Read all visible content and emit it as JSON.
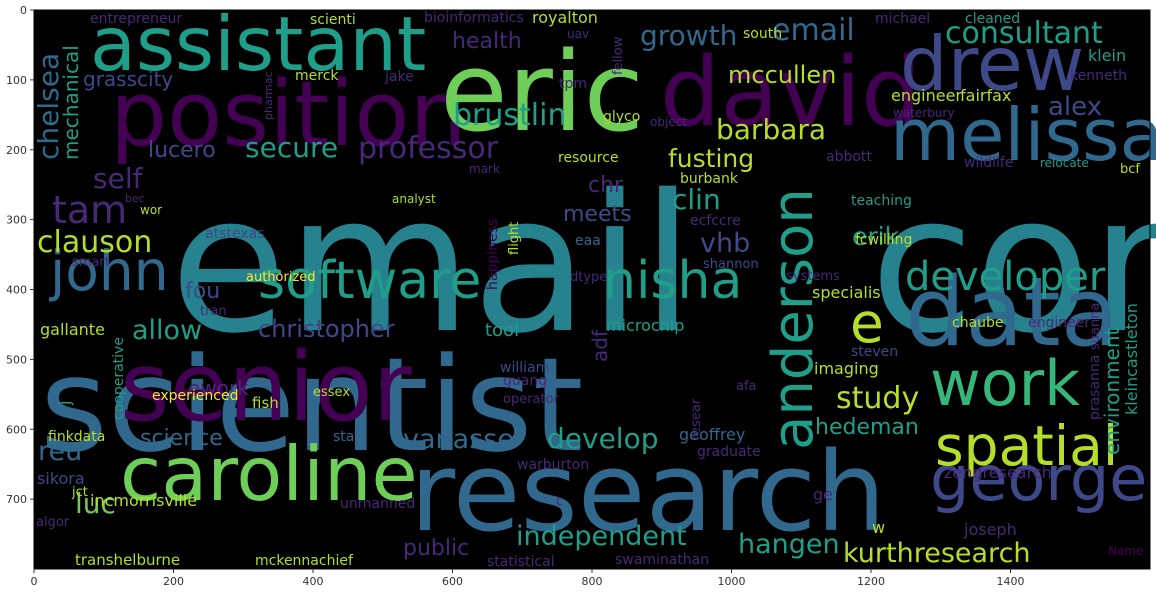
{
  "figure": {
    "type": "wordcloud",
    "background": "#000000",
    "x_ticks": [
      "0",
      "200",
      "400",
      "600",
      "800",
      "1000",
      "1200",
      "1400"
    ],
    "y_ticks": [
      "0",
      "100",
      "200",
      "300",
      "400",
      "500",
      "600",
      "700"
    ],
    "x_tick_values": [
      0,
      200,
      400,
      600,
      800,
      1000,
      1200,
      1400
    ],
    "y_tick_values": [
      0,
      100,
      200,
      300,
      400,
      500,
      600,
      700
    ],
    "xlim": [
      0,
      1600
    ],
    "ylim": [
      0,
      800
    ],
    "y_inverted": true
  },
  "palette": {
    "purple": "#440154",
    "indigo": "#482878",
    "blue": "#3e4989",
    "steel": "#31688e",
    "teal": "#26828e",
    "sea": "#1f9e89",
    "green": "#35b779",
    "lime": "#6ece58",
    "yellow": "#b5de2b",
    "gold": "#fde725"
  },
  "words": [
    {
      "text": "email",
      "x": 170,
      "y": 330,
      "s": 190,
      "c": "teal"
    },
    {
      "text": "com",
      "x": 870,
      "y": 330,
      "s": 190,
      "c": "teal"
    },
    {
      "text": "scientist",
      "x": 40,
      "y": 450,
      "s": 130,
      "c": "steel"
    },
    {
      "text": "research",
      "x": 410,
      "y": 530,
      "s": 110,
      "c": "steel"
    },
    {
      "text": "senior",
      "x": 120,
      "y": 420,
      "s": 95,
      "c": "purple"
    },
    {
      "text": "position",
      "x": 110,
      "y": 145,
      "s": 90,
      "c": "purple"
    },
    {
      "text": "david",
      "x": 660,
      "y": 125,
      "s": 95,
      "c": "purple"
    },
    {
      "text": "eric",
      "x": 440,
      "y": 130,
      "s": 110,
      "c": "lime"
    },
    {
      "text": "assistant",
      "x": 90,
      "y": 70,
      "s": 75,
      "c": "sea"
    },
    {
      "text": "caroline",
      "x": 120,
      "y": 500,
      "s": 75,
      "c": "lime"
    },
    {
      "text": "drew",
      "x": 900,
      "y": 90,
      "s": 75,
      "c": "blue"
    },
    {
      "text": "melissa",
      "x": 890,
      "y": 160,
      "s": 72,
      "c": "steel"
    },
    {
      "text": "data",
      "x": 905,
      "y": 345,
      "s": 95,
      "c": "steel"
    },
    {
      "text": "work",
      "x": 930,
      "y": 405,
      "s": 62,
      "c": "green"
    },
    {
      "text": "george",
      "x": 930,
      "y": 500,
      "s": 62,
      "c": "blue"
    },
    {
      "text": "spatial",
      "x": 935,
      "y": 465,
      "s": 55,
      "c": "yellow"
    },
    {
      "text": "software",
      "x": 258,
      "y": 298,
      "s": 52,
      "c": "sea"
    },
    {
      "text": "nisha",
      "x": 603,
      "y": 298,
      "s": 52,
      "c": "sea"
    },
    {
      "text": "john",
      "x": 50,
      "y": 290,
      "s": 55,
      "c": "steel"
    },
    {
      "text": "anderson",
      "x": 812,
      "y": 450,
      "s": 56,
      "c": "sea",
      "r": -90
    },
    {
      "text": "e",
      "x": 850,
      "y": 342,
      "s": 55,
      "c": "yellow"
    },
    {
      "text": "developer",
      "x": 905,
      "y": 290,
      "s": 40,
      "c": "sea"
    },
    {
      "text": "consultant",
      "x": 945,
      "y": 43,
      "s": 30,
      "c": "sea"
    },
    {
      "text": "growth",
      "x": 640,
      "y": 45,
      "s": 28,
      "c": "steel"
    },
    {
      "text": "email",
      "x": 772,
      "y": 40,
      "s": 30,
      "c": "steel"
    },
    {
      "text": "mccullen",
      "x": 728,
      "y": 83,
      "s": 24,
      "c": "yellow"
    },
    {
      "text": "health",
      "x": 452,
      "y": 48,
      "s": 22,
      "c": "indigo"
    },
    {
      "text": "brustlin",
      "x": 453,
      "y": 125,
      "s": 30,
      "c": "sea"
    },
    {
      "text": "barbara",
      "x": 716,
      "y": 139,
      "s": 28,
      "c": "yellow"
    },
    {
      "text": "professor",
      "x": 358,
      "y": 158,
      "s": 30,
      "c": "indigo"
    },
    {
      "text": "secure",
      "x": 245,
      "y": 157,
      "s": 28,
      "c": "sea"
    },
    {
      "text": "lucero",
      "x": 148,
      "y": 157,
      "s": 22,
      "c": "blue"
    },
    {
      "text": "fusting",
      "x": 668,
      "y": 167,
      "s": 25,
      "c": "yellow"
    },
    {
      "text": "self",
      "x": 93,
      "y": 188,
      "s": 28,
      "c": "indigo"
    },
    {
      "text": "chr",
      "x": 588,
      "y": 192,
      "s": 22,
      "c": "indigo"
    },
    {
      "text": "clin",
      "x": 672,
      "y": 209,
      "s": 28,
      "c": "sea"
    },
    {
      "text": "tam",
      "x": 52,
      "y": 223,
      "s": 38,
      "c": "indigo"
    },
    {
      "text": "meets",
      "x": 563,
      "y": 221,
      "s": 22,
      "c": "blue"
    },
    {
      "text": "clauson",
      "x": 37,
      "y": 252,
      "s": 30,
      "c": "yellow"
    },
    {
      "text": "vhb",
      "x": 700,
      "y": 252,
      "s": 27,
      "c": "blue"
    },
    {
      "text": "erik",
      "x": 852,
      "y": 245,
      "s": 25,
      "c": "sea"
    },
    {
      "text": "fou",
      "x": 185,
      "y": 298,
      "s": 22,
      "c": "blue"
    },
    {
      "text": "allow",
      "x": 132,
      "y": 339,
      "s": 27,
      "c": "sea"
    },
    {
      "text": "christopher",
      "x": 258,
      "y": 337,
      "s": 24,
      "c": "blue"
    },
    {
      "text": "study",
      "x": 836,
      "y": 408,
      "s": 30,
      "c": "yellow"
    },
    {
      "text": "hedeman",
      "x": 815,
      "y": 434,
      "s": 22,
      "c": "sea"
    },
    {
      "text": "science",
      "x": 140,
      "y": 445,
      "s": 22,
      "c": "steel"
    },
    {
      "text": "vanasse",
      "x": 403,
      "y": 448,
      "s": 27,
      "c": "steel"
    },
    {
      "text": "develop",
      "x": 547,
      "y": 448,
      "s": 28,
      "c": "sea"
    },
    {
      "text": "reu",
      "x": 38,
      "y": 460,
      "s": 27,
      "c": "steel"
    },
    {
      "text": "luc",
      "x": 75,
      "y": 513,
      "s": 28,
      "c": "lime"
    },
    {
      "text": "independent",
      "x": 516,
      "y": 545,
      "s": 27,
      "c": "sea"
    },
    {
      "text": "hangen",
      "x": 738,
      "y": 553,
      "s": 27,
      "c": "sea"
    },
    {
      "text": "kurthresearch",
      "x": 843,
      "y": 562,
      "s": 27,
      "c": "yellow"
    },
    {
      "text": "public",
      "x": 403,
      "y": 555,
      "s": 22,
      "c": "indigo"
    },
    {
      "text": "ework",
      "x": 188,
      "y": 395,
      "s": 20,
      "c": "indigo"
    },
    {
      "text": "alex",
      "x": 1048,
      "y": 115,
      "s": 26,
      "c": "blue"
    },
    {
      "text": "chelsea",
      "x": 58,
      "y": 160,
      "s": 28,
      "c": "steel",
      "r": -90
    },
    {
      "text": "mechanical",
      "x": 78,
      "y": 160,
      "s": 20,
      "c": "sea",
      "r": -90
    },
    {
      "text": "grasscity",
      "x": 83,
      "y": 86,
      "s": 20,
      "c": "blue"
    },
    {
      "text": "entrepreneur",
      "x": 90,
      "y": 23,
      "s": 14,
      "c": "indigo"
    },
    {
      "text": "scienti",
      "x": 310,
      "y": 24,
      "s": 14,
      "c": "yellow"
    },
    {
      "text": "bioinformatics",
      "x": 424,
      "y": 22,
      "s": 14,
      "c": "indigo"
    },
    {
      "text": "royalton",
      "x": 532,
      "y": 23,
      "s": 16,
      "c": "yellow"
    },
    {
      "text": "uav",
      "x": 567,
      "y": 38,
      "s": 12,
      "c": "indigo"
    },
    {
      "text": "south",
      "x": 743,
      "y": 38,
      "s": 14,
      "c": "yellow"
    },
    {
      "text": "michael",
      "x": 875,
      "y": 23,
      "s": 14,
      "c": "indigo"
    },
    {
      "text": "cleaned",
      "x": 965,
      "y": 23,
      "s": 14,
      "c": "sea"
    },
    {
      "text": "klein",
      "x": 1088,
      "y": 61,
      "s": 16,
      "c": "sea"
    },
    {
      "text": "kenneth",
      "x": 1070,
      "y": 80,
      "s": 14,
      "c": "indigo"
    },
    {
      "text": "merck",
      "x": 295,
      "y": 80,
      "s": 14,
      "c": "yellow"
    },
    {
      "text": "jake",
      "x": 385,
      "y": 81,
      "s": 14,
      "c": "indigo"
    },
    {
      "text": "tpm",
      "x": 559,
      "y": 88,
      "s": 14,
      "c": "indigo"
    },
    {
      "text": "glyco",
      "x": 603,
      "y": 121,
      "s": 14,
      "c": "yellow"
    },
    {
      "text": "object",
      "x": 650,
      "y": 126,
      "s": 12,
      "c": "indigo"
    },
    {
      "text": "engineer",
      "x": 891,
      "y": 101,
      "s": 16,
      "c": "yellow"
    },
    {
      "text": "fairfax",
      "x": 960,
      "y": 101,
      "s": 16,
      "c": "yellow"
    },
    {
      "text": "waterbury",
      "x": 893,
      "y": 117,
      "s": 12,
      "c": "indigo"
    },
    {
      "text": "resource",
      "x": 558,
      "y": 162,
      "s": 14,
      "c": "yellow"
    },
    {
      "text": "abbott",
      "x": 826,
      "y": 161,
      "s": 14,
      "c": "indigo"
    },
    {
      "text": "wildlife",
      "x": 964,
      "y": 167,
      "s": 14,
      "c": "indigo"
    },
    {
      "text": "relocate",
      "x": 1040,
      "y": 167,
      "s": 12,
      "c": "sea"
    },
    {
      "text": "bcf",
      "x": 1120,
      "y": 173,
      "s": 13,
      "c": "yellow"
    },
    {
      "text": "mark",
      "x": 469,
      "y": 173,
      "s": 12,
      "c": "indigo"
    },
    {
      "text": "burbank",
      "x": 680,
      "y": 183,
      "s": 14,
      "c": "yellow"
    },
    {
      "text": "bec",
      "x": 125,
      "y": 202,
      "s": 11,
      "c": "indigo"
    },
    {
      "text": "wor",
      "x": 140,
      "y": 214,
      "s": 12,
      "c": "yellow"
    },
    {
      "text": "analyst",
      "x": 392,
      "y": 203,
      "s": 12,
      "c": "yellow"
    },
    {
      "text": "ecfccre",
      "x": 690,
      "y": 225,
      "s": 14,
      "c": "indigo"
    },
    {
      "text": "teaching",
      "x": 851,
      "y": 205,
      "s": 14,
      "c": "sea"
    },
    {
      "text": "fcwilling",
      "x": 855,
      "y": 244,
      "s": 14,
      "c": "yellow"
    },
    {
      "text": "atstexas",
      "x": 205,
      "y": 238,
      "s": 14,
      "c": "blue"
    },
    {
      "text": "eaa",
      "x": 575,
      "y": 245,
      "s": 14,
      "c": "steel"
    },
    {
      "text": "smart",
      "x": 72,
      "y": 266,
      "s": 13,
      "c": "indigo"
    },
    {
      "text": "shannon",
      "x": 703,
      "y": 268,
      "s": 13,
      "c": "blue"
    },
    {
      "text": "authorized",
      "x": 246,
      "y": 281,
      "s": 13,
      "c": "gold"
    },
    {
      "text": "dtype",
      "x": 570,
      "y": 281,
      "s": 13,
      "c": "indigo"
    },
    {
      "text": "systems",
      "x": 786,
      "y": 280,
      "s": 13,
      "c": "indigo"
    },
    {
      "text": "specialis",
      "x": 812,
      "y": 298,
      "s": 16,
      "c": "yellow"
    },
    {
      "text": "tran",
      "x": 200,
      "y": 315,
      "s": 13,
      "c": "indigo"
    },
    {
      "text": "gallante",
      "x": 40,
      "y": 335,
      "s": 16,
      "c": "yellow"
    },
    {
      "text": "tool",
      "x": 485,
      "y": 336,
      "s": 18,
      "c": "sea"
    },
    {
      "text": "microchip",
      "x": 606,
      "y": 331,
      "s": 16,
      "c": "sea"
    },
    {
      "text": "chaube",
      "x": 952,
      "y": 327,
      "s": 14,
      "c": "yellow"
    },
    {
      "text": "engineer",
      "x": 1028,
      "y": 327,
      "s": 14,
      "c": "indigo"
    },
    {
      "text": "steven",
      "x": 851,
      "y": 356,
      "s": 14,
      "c": "blue"
    },
    {
      "text": "imaging",
      "x": 814,
      "y": 374,
      "s": 16,
      "c": "yellow"
    },
    {
      "text": "william",
      "x": 500,
      "y": 372,
      "s": 14,
      "c": "blue"
    },
    {
      "text": "guang",
      "x": 503,
      "y": 385,
      "s": 14,
      "c": "indigo"
    },
    {
      "text": "essex",
      "x": 313,
      "y": 396,
      "s": 13,
      "c": "yellow"
    },
    {
      "text": "experienced",
      "x": 152,
      "y": 400,
      "s": 14,
      "c": "gold"
    },
    {
      "text": "fish",
      "x": 252,
      "y": 408,
      "s": 15,
      "c": "yellow"
    },
    {
      "text": "operator",
      "x": 503,
      "y": 403,
      "s": 13,
      "c": "indigo"
    },
    {
      "text": "afa",
      "x": 736,
      "y": 390,
      "s": 13,
      "c": "indigo"
    },
    {
      "text": "finkdata",
      "x": 48,
      "y": 441,
      "s": 14,
      "c": "yellow"
    },
    {
      "text": "staff",
      "x": 333,
      "y": 441,
      "s": 14,
      "c": "steel"
    },
    {
      "text": "geoffrey",
      "x": 679,
      "y": 440,
      "s": 16,
      "c": "steel"
    },
    {
      "text": "graduate",
      "x": 697,
      "y": 456,
      "s": 14,
      "c": "indigo"
    },
    {
      "text": "warburton",
      "x": 517,
      "y": 469,
      "s": 14,
      "c": "indigo"
    },
    {
      "text": "sikora",
      "x": 37,
      "y": 484,
      "s": 16,
      "c": "blue"
    },
    {
      "text": "zengresearch",
      "x": 944,
      "y": 478,
      "s": 16,
      "c": "indigo"
    },
    {
      "text": "incmorrisville",
      "x": 90,
      "y": 506,
      "s": 16,
      "c": "yellow"
    },
    {
      "text": "jct",
      "x": 72,
      "y": 496,
      "s": 13,
      "c": "yellow"
    },
    {
      "text": "unmanned",
      "x": 340,
      "y": 508,
      "s": 14,
      "c": "indigo"
    },
    {
      "text": "ge",
      "x": 813,
      "y": 500,
      "s": 16,
      "c": "indigo"
    },
    {
      "text": "algor",
      "x": 36,
      "y": 526,
      "s": 13,
      "c": "indigo"
    },
    {
      "text": "joseph",
      "x": 964,
      "y": 535,
      "s": 16,
      "c": "indigo"
    },
    {
      "text": "w",
      "x": 872,
      "y": 533,
      "s": 16,
      "c": "yellow"
    },
    {
      "text": "c",
      "x": 556,
      "y": 505,
      "s": 13,
      "c": "indigo"
    },
    {
      "text": "transhelburne",
      "x": 75,
      "y": 565,
      "s": 15,
      "c": "yellow"
    },
    {
      "text": "mckennachief",
      "x": 255,
      "y": 565,
      "s": 14,
      "c": "yellow"
    },
    {
      "text": "statistical",
      "x": 487,
      "y": 566,
      "s": 14,
      "c": "indigo"
    },
    {
      "text": "swaminathan",
      "x": 615,
      "y": 564,
      "s": 14,
      "c": "indigo"
    },
    {
      "text": "Name",
      "x": 1108,
      "y": 555,
      "s": 12,
      "c": "purple"
    },
    {
      "text": "pharmac",
      "x": 272,
      "y": 120,
      "s": 11,
      "c": "indigo",
      "r": -90
    },
    {
      "text": "fellow",
      "x": 622,
      "y": 75,
      "s": 13,
      "c": "indigo",
      "r": -90
    },
    {
      "text": "happiness",
      "x": 497,
      "y": 290,
      "s": 14,
      "c": "purple",
      "r": -90
    },
    {
      "text": "flight",
      "x": 518,
      "y": 255,
      "s": 13,
      "c": "yellow",
      "r": -90
    },
    {
      "text": "adf",
      "x": 607,
      "y": 362,
      "s": 20,
      "c": "indigo",
      "r": -90
    },
    {
      "text": "environment",
      "x": 1119,
      "y": 455,
      "s": 20,
      "c": "sea",
      "r": -90
    },
    {
      "text": "kleincastleton",
      "x": 1137,
      "y": 415,
      "s": 16,
      "c": "sea",
      "r": -90
    },
    {
      "text": "cooperative",
      "x": 123,
      "y": 420,
      "s": 14,
      "c": "sea",
      "r": -90
    },
    {
      "text": "prasanna",
      "x": 1099,
      "y": 420,
      "s": 14,
      "c": "indigo",
      "r": -90
    },
    {
      "text": "j",
      "x": 70,
      "y": 405,
      "s": 16,
      "c": "sea",
      "r": -90
    },
    {
      "text": "resear",
      "x": 700,
      "y": 440,
      "s": 13,
      "c": "indigo",
      "r": -90
    },
    {
      "text": "suanna",
      "x": 1099,
      "y": 350,
      "s": 13,
      "c": "indigo",
      "r": -90
    }
  ]
}
